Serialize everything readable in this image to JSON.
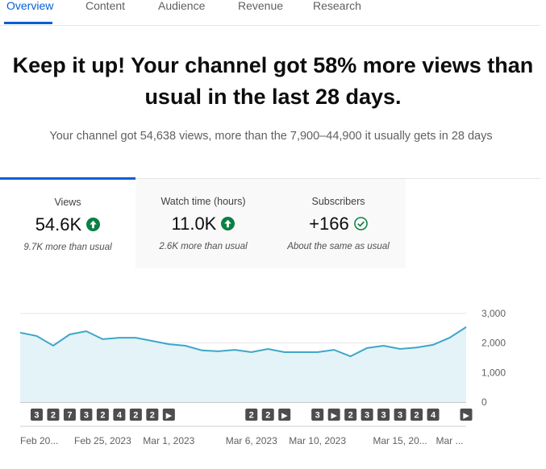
{
  "tabs": [
    "Overview",
    "Content",
    "Audience",
    "Revenue",
    "Research"
  ],
  "headline": [
    "Keep it up! Your channel got 58% more views than",
    "usual in the last 28 days."
  ],
  "subtitle": "Your channel got 54,638 views, more than the 7,900–44,900 it usually gets in 28 days",
  "metrics": [
    {
      "label": "Views",
      "value": "54.6K",
      "note": "9.7K more than usual"
    },
    {
      "label": "Watch time (hours)",
      "value": "11.0K",
      "note": "2.6K more than usual"
    },
    {
      "label": "Subscribers",
      "value": "+166",
      "note": "About the same as usual"
    }
  ],
  "chart_data": {
    "type": "area",
    "categories": [
      "Feb 20...",
      null,
      null,
      null,
      null,
      "Feb 25, 2023",
      null,
      null,
      null,
      "Mar 1, 2023",
      null,
      null,
      null,
      null,
      "Mar 6, 2023",
      null,
      null,
      null,
      "Mar 10, 2023",
      null,
      null,
      null,
      null,
      "Mar 15, 20...",
      null,
      null,
      "Mar ...",
      null
    ],
    "series": [
      {
        "color": "#3ea6c9",
        "fill": "#e3f3f8",
        "values": [
          2350,
          2240,
          1910,
          2290,
          2400,
          2130,
          2180,
          2180,
          2070,
          1960,
          1910,
          1750,
          1720,
          1770,
          1690,
          1800,
          1690,
          1690,
          1690,
          1770,
          1550,
          1830,
          1910,
          1800,
          1850,
          1940,
          2180,
          2540
        ]
      }
    ],
    "markers": [
      null,
      "3",
      "2",
      "7",
      "3",
      "2",
      "4",
      "2",
      "2",
      "▶",
      null,
      null,
      null,
      null,
      "2",
      "2",
      "▶",
      null,
      "3",
      "▶",
      "2",
      "3",
      "3",
      "3",
      "2",
      "4",
      null,
      "▶"
    ],
    "ylim": [
      0,
      3000
    ],
    "yticks": [
      0,
      {
        "value": 1000,
        "label": "1,000"
      },
      {
        "value": 2000,
        "label": "2,000"
      },
      {
        "value": 3000,
        "label": "3,000"
      }
    ],
    "grid": true
  }
}
